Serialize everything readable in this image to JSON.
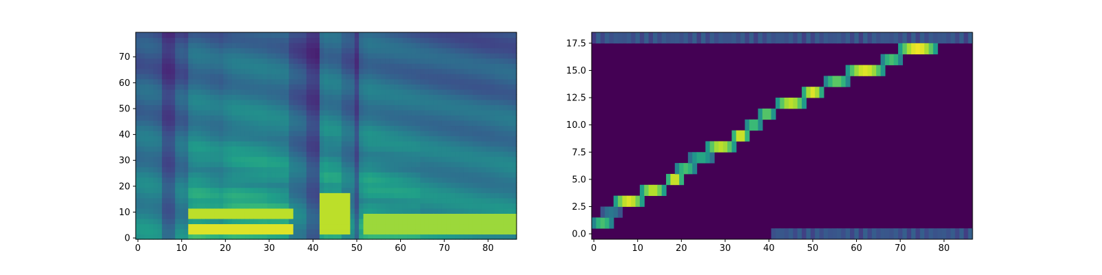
{
  "colors": {
    "colormap": "viridis",
    "low": "#440154",
    "mid": "#21918c",
    "high": "#fde725",
    "axis": "#000000"
  },
  "chart_data": [
    {
      "id": "mel-spectrogram",
      "type": "heatmap",
      "title": "",
      "xlabel": "",
      "ylabel": "",
      "grid": false,
      "colormap": "viridis",
      "xlim": [
        -0.5,
        86.5
      ],
      "ylim": [
        -0.5,
        79.5
      ],
      "x_ticks": [
        0,
        10,
        20,
        30,
        40,
        50,
        60,
        70,
        80
      ],
      "x_tick_labels": [
        "0",
        "10",
        "20",
        "30",
        "40",
        "50",
        "60",
        "70",
        "80"
      ],
      "y_ticks": [
        0,
        10,
        20,
        30,
        40,
        50,
        60,
        70
      ],
      "y_tick_labels": [
        "0",
        "10",
        "20",
        "30",
        "40",
        "50",
        "60",
        "70"
      ],
      "n_frames": 87,
      "n_bins": 80,
      "energy_profile": [
        0.55,
        0.6,
        0.62,
        0.6,
        0.55,
        0.5,
        0.3,
        0.25,
        0.3,
        0.45,
        0.5,
        0.45,
        0.85,
        0.9,
        0.9,
        0.88,
        0.85,
        0.8,
        0.8,
        0.75,
        0.85,
        0.9,
        0.95,
        0.95,
        0.95,
        0.95,
        0.95,
        0.95,
        0.95,
        0.95,
        0.9,
        0.9,
        0.88,
        0.85,
        0.85,
        0.5,
        0.45,
        0.4,
        0.35,
        0.3,
        0.25,
        0.2,
        0.85,
        0.95,
        0.9,
        0.9,
        0.88,
        0.6,
        0.55,
        0.5,
        0.3,
        0.75,
        0.85,
        0.9,
        0.88,
        0.86,
        0.84,
        0.82,
        0.8,
        0.8,
        0.78,
        0.76,
        0.75,
        0.74,
        0.72,
        0.7,
        0.7,
        0.68,
        0.68,
        0.66,
        0.66,
        0.65,
        0.64,
        0.63,
        0.62,
        0.62,
        0.62,
        0.6,
        0.6,
        0.6,
        0.6,
        0.6,
        0.62,
        0.62,
        0.62,
        0.62,
        0.6
      ],
      "harmonic_bands": [
        {
          "frames": [
            12,
            35
          ],
          "bins": [
            3,
            6
          ],
          "value": 0.95
        },
        {
          "frames": [
            12,
            35
          ],
          "bins": [
            9,
            12
          ],
          "value": 0.9
        },
        {
          "frames": [
            42,
            48
          ],
          "bins": [
            3,
            17
          ],
          "value": 0.9
        },
        {
          "frames": [
            52,
            86
          ],
          "bins": [
            3,
            9
          ],
          "value": 0.85
        }
      ]
    },
    {
      "id": "alignment",
      "type": "heatmap",
      "title": "",
      "xlabel": "",
      "ylabel": "",
      "grid": false,
      "colormap": "viridis",
      "xlim": [
        -0.5,
        86.5
      ],
      "ylim": [
        -0.5,
        18.5
      ],
      "x_ticks": [
        0,
        10,
        20,
        30,
        40,
        50,
        60,
        70,
        80
      ],
      "x_tick_labels": [
        "0",
        "10",
        "20",
        "30",
        "40",
        "50",
        "60",
        "70",
        "80"
      ],
      "y_ticks": [
        0,
        2.5,
        5,
        7.5,
        10,
        12.5,
        15,
        17.5
      ],
      "y_tick_labels": [
        "0.0",
        "2.5",
        "5.0",
        "7.5",
        "10.0",
        "12.5",
        "15.0",
        "17.5"
      ],
      "n_frames": 87,
      "n_tokens": 19,
      "alignment_path": [
        {
          "token": 1,
          "frames": [
            0,
            4
          ],
          "peak": 0.7
        },
        {
          "token": 2,
          "frames": [
            2,
            6
          ],
          "peak": 0.4
        },
        {
          "token": 3,
          "frames": [
            5,
            11
          ],
          "peak": 0.95
        },
        {
          "token": 4,
          "frames": [
            11,
            16
          ],
          "peak": 0.9
        },
        {
          "token": 5,
          "frames": [
            17,
            20
          ],
          "peak": 0.95
        },
        {
          "token": 6,
          "frames": [
            19,
            23
          ],
          "peak": 0.7
        },
        {
          "token": 7,
          "frames": [
            22,
            27
          ],
          "peak": 0.6
        },
        {
          "token": 8,
          "frames": [
            26,
            32
          ],
          "peak": 0.9
        },
        {
          "token": 9,
          "frames": [
            32,
            35
          ],
          "peak": 0.95
        },
        {
          "token": 10,
          "frames": [
            35,
            38
          ],
          "peak": 0.7
        },
        {
          "token": 11,
          "frames": [
            38,
            41
          ],
          "peak": 0.75
        },
        {
          "token": 12,
          "frames": [
            42,
            48
          ],
          "peak": 0.9
        },
        {
          "token": 13,
          "frames": [
            48,
            52
          ],
          "peak": 0.95
        },
        {
          "token": 14,
          "frames": [
            53,
            58
          ],
          "peak": 0.75
        },
        {
          "token": 15,
          "frames": [
            58,
            66
          ],
          "peak": 0.95
        },
        {
          "token": 16,
          "frames": [
            66,
            70
          ],
          "peak": 0.7
        },
        {
          "token": 17,
          "frames": [
            70,
            78
          ],
          "peak": 0.98
        }
      ],
      "edge_rows": [
        {
          "token": 0,
          "frames": [
            41,
            86
          ],
          "value": 0.3
        },
        {
          "token": 18,
          "frames": [
            0,
            86
          ],
          "value": 0.3
        }
      ]
    }
  ]
}
